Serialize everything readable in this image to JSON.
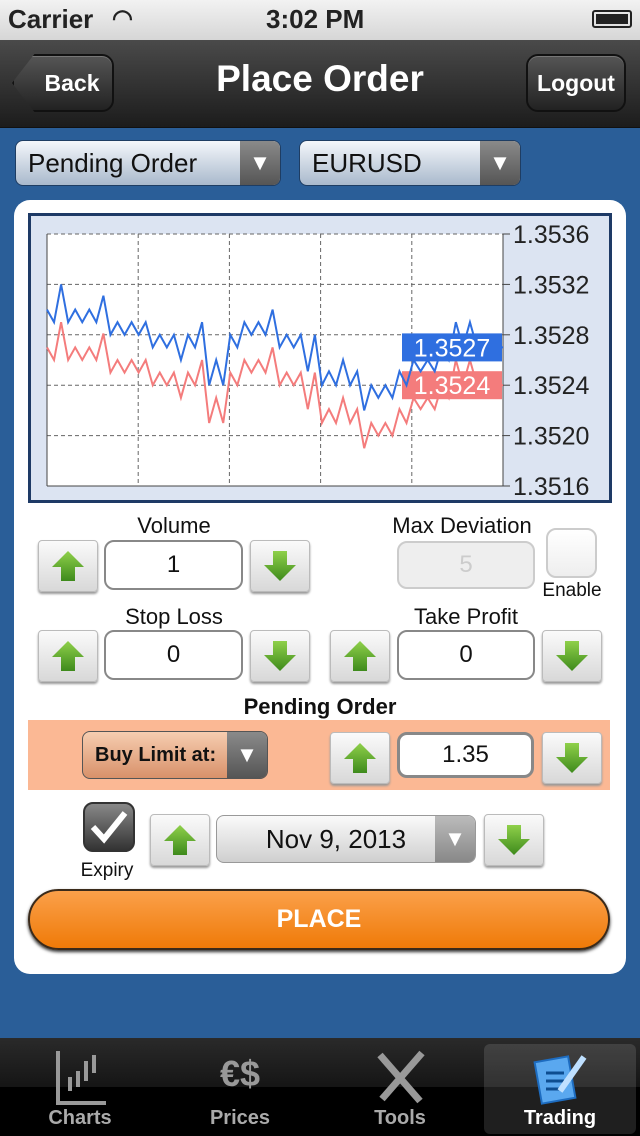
{
  "status_bar": {
    "carrier": "Carrier",
    "time": "3:02 PM"
  },
  "nav": {
    "back": "Back",
    "title": "Place Order",
    "logout": "Logout"
  },
  "selectors": {
    "order_type": "Pending Order",
    "symbol": "EURUSD"
  },
  "chart_data": {
    "type": "line",
    "ylim": [
      1.3516,
      1.3536
    ],
    "y_ticks": [
      "1.3536",
      "1.3532",
      "1.3528",
      "1.3524",
      "1.3520",
      "1.3516"
    ],
    "grid": true,
    "series": [
      {
        "color": "#2f6fe0",
        "last_label": "1.3527",
        "values": [
          1.353,
          1.3529,
          1.3532,
          1.3529,
          1.353,
          1.3529,
          1.353,
          1.3529,
          1.35311,
          1.3528,
          1.3529,
          1.3528,
          1.3529,
          1.3528,
          1.3529,
          1.3527,
          1.3528,
          1.3527,
          1.3528,
          1.3526,
          1.3528,
          1.3527,
          1.3529,
          1.3524,
          1.3526,
          1.3524,
          1.3528,
          1.3527,
          1.3529,
          1.3528,
          1.3529,
          1.3528,
          1.353,
          1.3527,
          1.3528,
          1.3527,
          1.3528,
          1.35251,
          1.3528,
          1.3524,
          1.35251,
          1.3524,
          1.3526,
          1.3524,
          1.35251,
          1.3522,
          1.3524,
          1.3523,
          1.3524,
          1.3523,
          1.35251,
          1.3524,
          1.3526,
          1.35251,
          1.3526,
          1.35251,
          1.3527,
          1.3526,
          1.3529,
          1.3527,
          1.3529,
          1.3527
        ]
      },
      {
        "color": "#f47c7c",
        "last_label": "1.3524",
        "values": [
          1.3527,
          1.3526,
          1.3529,
          1.3526,
          1.3527,
          1.3526,
          1.3527,
          1.3526,
          1.35281,
          1.3525,
          1.3526,
          1.3525,
          1.3526,
          1.3525,
          1.3526,
          1.3524,
          1.3525,
          1.3524,
          1.3525,
          1.3523,
          1.3525,
          1.3524,
          1.3526,
          1.3521,
          1.3523,
          1.3521,
          1.3525,
          1.3524,
          1.3526,
          1.3525,
          1.3526,
          1.3525,
          1.3527,
          1.3524,
          1.3525,
          1.3524,
          1.3525,
          1.35221,
          1.3525,
          1.3521,
          1.35221,
          1.3521,
          1.3523,
          1.3521,
          1.35221,
          1.3519,
          1.3521,
          1.352,
          1.3521,
          1.352,
          1.35221,
          1.3521,
          1.3523,
          1.35221,
          1.3523,
          1.35221,
          1.3524,
          1.3523,
          1.3526,
          1.3524,
          1.3526,
          1.3524
        ]
      }
    ]
  },
  "form": {
    "volume_label": "Volume",
    "volume": "1",
    "max_dev_label": "Max Deviation",
    "max_dev": "5",
    "enable_label": "Enable",
    "enable_checked": false,
    "stop_loss_label": "Stop Loss",
    "stop_loss": "0",
    "take_profit_label": "Take Profit",
    "take_profit": "0",
    "pending_title": "Pending Order",
    "pending_type": "Buy Limit at:",
    "pending_price": "1.35",
    "expiry_label": "Expiry",
    "expiry_checked": true,
    "expiry_date": "Nov 9, 2013",
    "place": "PLACE"
  },
  "tabs": [
    {
      "label": "Charts",
      "icon": "chart-icon"
    },
    {
      "label": "Prices",
      "icon": "currency-icon"
    },
    {
      "label": "Tools",
      "icon": "tools-icon"
    },
    {
      "label": "Trading",
      "icon": "trading-icon",
      "active": true
    }
  ]
}
